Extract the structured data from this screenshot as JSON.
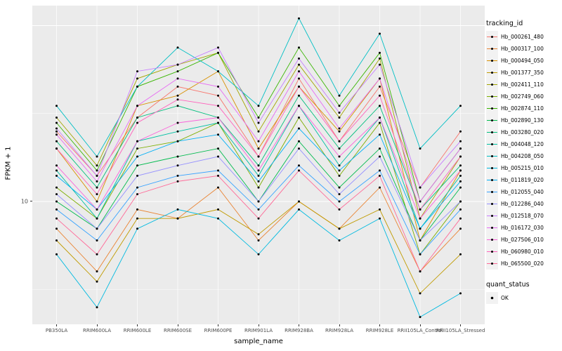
{
  "figure": {
    "background": "#FFFFFF",
    "panel_background": "#EBEBEB",
    "gridline_color": "#FFFFFF",
    "axis_text_color": "#4D4D4D",
    "point_color": "#000000"
  },
  "chart_data": {
    "type": "line",
    "title": "",
    "xlabel": "sample_name",
    "ylabel": "FPKM + 1",
    "y_scale": "log10",
    "ylim": [
      2,
      130
    ],
    "y_major_gridlines": [
      10,
      100
    ],
    "y_minor_gridlines": [
      3.162,
      31.62
    ],
    "y_ticks": [
      {
        "value": 10,
        "label": "10"
      }
    ],
    "grid": true,
    "legend_position": "right",
    "categories": [
      "PB350LA",
      "RRIM600LA",
      "RRIM600LE",
      "RRIM600SE",
      "RRIM600PE",
      "RRIM901LA",
      "RRIM928BA",
      "RRIM928LA",
      "RRIM928LE",
      "RRII105LA_Control",
      "RRII105LA_Stressed"
    ],
    "series": [
      {
        "name": "Hb_000261_480",
        "color": "#F8766D",
        "values": [
          25,
          14,
          30,
          45,
          40,
          18,
          50,
          22,
          45,
          12,
          25
        ]
      },
      {
        "name": "Hb_000317_100",
        "color": "#EA8331",
        "values": [
          7,
          4,
          9,
          8,
          12,
          6,
          10,
          7,
          12,
          4,
          7
        ]
      },
      {
        "name": "Hb_000494_050",
        "color": "#D89000",
        "values": [
          20,
          10,
          35,
          40,
          55,
          20,
          45,
          25,
          50,
          6,
          15
        ]
      },
      {
        "name": "Hb_001377_350",
        "color": "#C09B00",
        "values": [
          6,
          3.5,
          8,
          8,
          9,
          6.5,
          10,
          7,
          9,
          3,
          5
        ]
      },
      {
        "name": "Hb_002411_110",
        "color": "#A3A500",
        "values": [
          30,
          16,
          50,
          60,
          70,
          25,
          60,
          30,
          65,
          8,
          18
        ]
      },
      {
        "name": "Hb_002749_060",
        "color": "#7CAE00",
        "values": [
          12,
          8,
          20,
          22,
          28,
          12,
          30,
          14,
          28,
          5,
          10
        ]
      },
      {
        "name": "Hb_002874_110",
        "color": "#39B600",
        "values": [
          28,
          15,
          45,
          55,
          70,
          30,
          75,
          35,
          70,
          10,
          20
        ]
      },
      {
        "name": "Hb_002890_130",
        "color": "#00BB4E",
        "values": [
          10,
          7,
          16,
          18,
          20,
          10,
          22,
          12,
          20,
          6,
          12
        ]
      },
      {
        "name": "Hb_003280_020",
        "color": "#00BF7D",
        "values": [
          22,
          12,
          30,
          35,
          30,
          16,
          40,
          20,
          35,
          9,
          16
        ]
      },
      {
        "name": "Hb_004048_120",
        "color": "#00C1A3",
        "values": [
          15,
          8,
          22,
          25,
          28,
          14,
          35,
          16,
          30,
          7,
          14
        ]
      },
      {
        "name": "Hb_004208_050",
        "color": "#00BFC4",
        "values": [
          35,
          18,
          45,
          75,
          55,
          35,
          110,
          40,
          90,
          20,
          35
        ]
      },
      {
        "name": "Hb_005215_010",
        "color": "#00BAE0",
        "values": [
          5,
          2.5,
          7,
          9,
          8,
          5,
          9,
          6,
          8,
          2.2,
          3
        ]
      },
      {
        "name": "Hb_011819_020",
        "color": "#00B0F6",
        "values": [
          14,
          9,
          18,
          22,
          24,
          13,
          26,
          15,
          24,
          7,
          13
        ]
      },
      {
        "name": "Hb_012055_040",
        "color": "#35A2FF",
        "values": [
          9,
          6,
          12,
          14,
          15,
          9,
          16,
          10,
          15,
          5,
          9
        ]
      },
      {
        "name": "Hb_012286_040",
        "color": "#9590FF",
        "values": [
          11,
          7,
          14,
          16,
          18,
          10,
          20,
          11,
          18,
          6,
          10
        ]
      },
      {
        "name": "Hb_012518_070",
        "color": "#C77CFF",
        "values": [
          26,
          14,
          55,
          60,
          75,
          28,
          65,
          32,
          60,
          12,
          22
        ]
      },
      {
        "name": "Hb_016172_030",
        "color": "#E76BF3",
        "values": [
          24,
          13,
          35,
          50,
          45,
          22,
          55,
          26,
          50,
          10,
          20
        ]
      },
      {
        "name": "Hb_027506_010",
        "color": "#FA62DB",
        "values": [
          16,
          9,
          22,
          28,
          30,
          15,
          35,
          18,
          30,
          8,
          15
        ]
      },
      {
        "name": "Hb_060980_010",
        "color": "#FF62BC",
        "values": [
          20,
          11,
          28,
          38,
          35,
          18,
          45,
          22,
          40,
          9,
          18
        ]
      },
      {
        "name": "Hb_065500_020",
        "color": "#FF6A98",
        "values": [
          8,
          5,
          11,
          13,
          14,
          8,
          15,
          9,
          14,
          4,
          8
        ]
      }
    ],
    "legend": {
      "color_title": "tracking_id",
      "shape_title": "quant_status",
      "shape_entries": [
        {
          "label": "OK"
        }
      ]
    }
  }
}
